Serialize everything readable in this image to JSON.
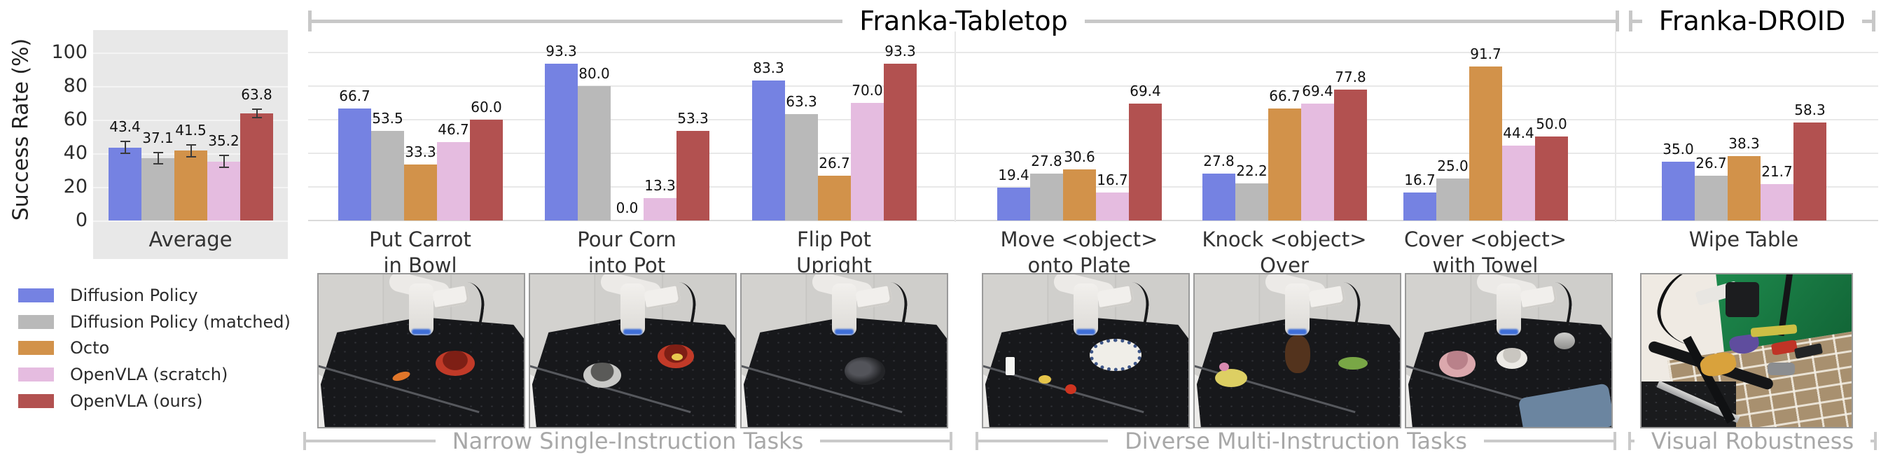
{
  "figure": {
    "y_axis": {
      "label": "Success Rate (%)"
    },
    "headers": {
      "tabletop": "Franka-Tabletop",
      "droid": "Franka-DROID"
    },
    "footers": {
      "narrow": "Narrow Single-Instruction Tasks",
      "diverse": "Diverse Multi-Instruction Tasks",
      "visual": "Visual Robustness"
    }
  },
  "legend": {
    "items": [
      {
        "label": "Diffusion Policy",
        "color": "#7582e2"
      },
      {
        "label": "Diffusion Policy (matched)",
        "color": "#b9b9b9"
      },
      {
        "label": "Octo",
        "color": "#d2924a"
      },
      {
        "label": "OpenVLA (scratch)",
        "color": "#e5bce0"
      },
      {
        "label": "OpenVLA (ours)",
        "color": "#b25150"
      }
    ]
  },
  "photos": [
    {
      "name": "put-carrot-in-bowl",
      "contents": "Franka arm over black table with orange carrot and red bowl"
    },
    {
      "name": "pour-corn-into-pot",
      "contents": "Franka arm with steel pot and red bowl of corn"
    },
    {
      "name": "flip-pot-upright",
      "contents": "Franka arm with dark pot lying on its side"
    },
    {
      "name": "move-object-onto-plate",
      "contents": "milk carton, corn, red pepper and patterned plate"
    },
    {
      "name": "knock-object-over",
      "contents": "yellow pony plush, brown monkey plush, green dinosaur"
    },
    {
      "name": "cover-object-with-towel",
      "contents": "pink bowl, white bowl, steel cup, blue towel"
    },
    {
      "name": "wipe-table-droid",
      "contents": "DROID rig with green screen, brick table, towel, brushes, dustpan"
    }
  ],
  "chart_data": {
    "type": "bar",
    "title": "",
    "xlabel": "",
    "ylabel": "Success Rate (%)",
    "ylim": [
      0,
      100
    ],
    "yticks": [
      0,
      20,
      40,
      60,
      80,
      100
    ],
    "grid": "horizontal",
    "legend_position": "lower left, outside plot",
    "categories": [
      {
        "line1": "Average",
        "line2": "",
        "section": "Average"
      },
      {
        "line1": "Put Carrot",
        "line2": "in Bowl",
        "section": "Franka-Tabletop · Narrow Single-Instruction Tasks"
      },
      {
        "line1": "Pour Corn",
        "line2": "into Pot",
        "section": "Franka-Tabletop · Narrow Single-Instruction Tasks"
      },
      {
        "line1": "Flip Pot",
        "line2": "Upright",
        "section": "Franka-Tabletop · Narrow Single-Instruction Tasks"
      },
      {
        "line1": "Move <object>",
        "line2": "onto Plate",
        "section": "Franka-Tabletop · Diverse Multi-Instruction Tasks"
      },
      {
        "line1": "Knock <object>",
        "line2": "Over",
        "section": "Franka-Tabletop · Diverse Multi-Instruction Tasks"
      },
      {
        "line1": "Cover <object>",
        "line2": "with Towel",
        "section": "Franka-Tabletop · Diverse Multi-Instruction Tasks"
      },
      {
        "line1": "Wipe Table",
        "line2": "",
        "section": "Franka-DROID · Visual Robustness"
      }
    ],
    "series": [
      {
        "name": "Diffusion Policy",
        "color": "#7582e2",
        "values": [
          43.4,
          66.7,
          93.3,
          83.3,
          19.4,
          27.8,
          16.7,
          35.0
        ]
      },
      {
        "name": "Diffusion Policy (matched)",
        "color": "#b9b9b9",
        "values": [
          37.1,
          53.5,
          80.0,
          63.3,
          27.8,
          22.2,
          25.0,
          26.7
        ]
      },
      {
        "name": "Octo",
        "color": "#d2924a",
        "values": [
          41.5,
          33.3,
          0.0,
          26.7,
          30.6,
          66.7,
          91.7,
          38.3
        ]
      },
      {
        "name": "OpenVLA (scratch)",
        "color": "#e5bce0",
        "values": [
          35.2,
          46.7,
          13.3,
          70.0,
          16.7,
          69.4,
          44.4,
          21.7
        ]
      },
      {
        "name": "OpenVLA (ours)",
        "color": "#b25150",
        "values": [
          63.8,
          60.0,
          53.3,
          93.3,
          69.4,
          77.8,
          50.0,
          58.3
        ]
      }
    ],
    "average_error_bars_estimated": [
      3.5,
      3.5,
      3.5,
      3.5,
      2.5
    ],
    "notes": "Error bars shown only on the Average panel; values are unlabeled estimates."
  }
}
